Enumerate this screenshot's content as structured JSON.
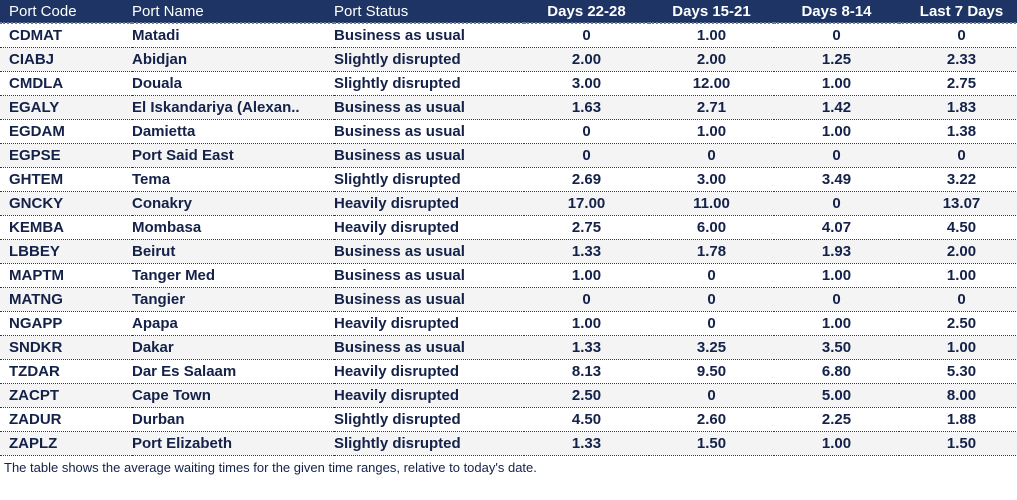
{
  "table": {
    "columns": [
      "Port Code",
      "Port Name",
      "Port Status",
      "Days 22-28",
      "Days 15-21",
      "Days 8-14",
      "Last 7 Days"
    ],
    "rows": [
      [
        "CDMAT",
        "Matadi",
        "Business as usual",
        "0",
        "1.00",
        "0",
        "0"
      ],
      [
        "CIABJ",
        "Abidjan",
        "Slightly disrupted",
        "2.00",
        "2.00",
        "1.25",
        "2.33"
      ],
      [
        "CMDLA",
        "Douala",
        "Slightly disrupted",
        "3.00",
        "12.00",
        "1.00",
        "2.75"
      ],
      [
        "EGALY",
        "El Iskandariya (Alexan..",
        "Business as usual",
        "1.63",
        "2.71",
        "1.42",
        "1.83"
      ],
      [
        "EGDAM",
        "Damietta",
        "Business as usual",
        "0",
        "1.00",
        "1.00",
        "1.38"
      ],
      [
        "EGPSE",
        "Port Said East",
        "Business as usual",
        "0",
        "0",
        "0",
        "0"
      ],
      [
        "GHTEM",
        "Tema",
        "Slightly disrupted",
        "2.69",
        "3.00",
        "3.49",
        "3.22"
      ],
      [
        "GNCKY",
        "Conakry",
        "Heavily disrupted",
        "17.00",
        "11.00",
        "0",
        "13.07"
      ],
      [
        "KEMBA",
        "Mombasa",
        "Heavily disrupted",
        "2.75",
        "6.00",
        "4.07",
        "4.50"
      ],
      [
        "LBBEY",
        "Beirut",
        "Business as usual",
        "1.33",
        "1.78",
        "1.93",
        "2.00"
      ],
      [
        "MAPTM",
        "Tanger Med",
        "Business as usual",
        "1.00",
        "0",
        "1.00",
        "1.00"
      ],
      [
        "MATNG",
        "Tangier",
        "Business as usual",
        "0",
        "0",
        "0",
        "0"
      ],
      [
        "NGAPP",
        "Apapa",
        "Heavily disrupted",
        "1.00",
        "0",
        "1.00",
        "2.50"
      ],
      [
        "SNDKR",
        "Dakar",
        "Business as usual",
        "1.33",
        "3.25",
        "3.50",
        "1.00"
      ],
      [
        "TZDAR",
        "Dar Es Salaam",
        "Heavily disrupted",
        "8.13",
        "9.50",
        "6.80",
        "5.30"
      ],
      [
        "ZACPT",
        "Cape Town",
        "Heavily disrupted",
        "2.50",
        "0",
        "5.00",
        "8.00"
      ],
      [
        "ZADUR",
        "Durban",
        "Slightly disrupted",
        "4.50",
        "2.60",
        "2.25",
        "1.88"
      ],
      [
        "ZAPLZ",
        "Port Elizabeth",
        "Slightly disrupted",
        "1.33",
        "1.50",
        "1.00",
        "1.50"
      ]
    ]
  },
  "footer": {
    "note": "The table shows the average waiting times for the given time ranges, relative to today's date."
  },
  "colors": {
    "header_bg": "#1d3464",
    "header_text": "#ffffff",
    "body_text": "#14224a",
    "alt_row": "#f4f4f4"
  }
}
